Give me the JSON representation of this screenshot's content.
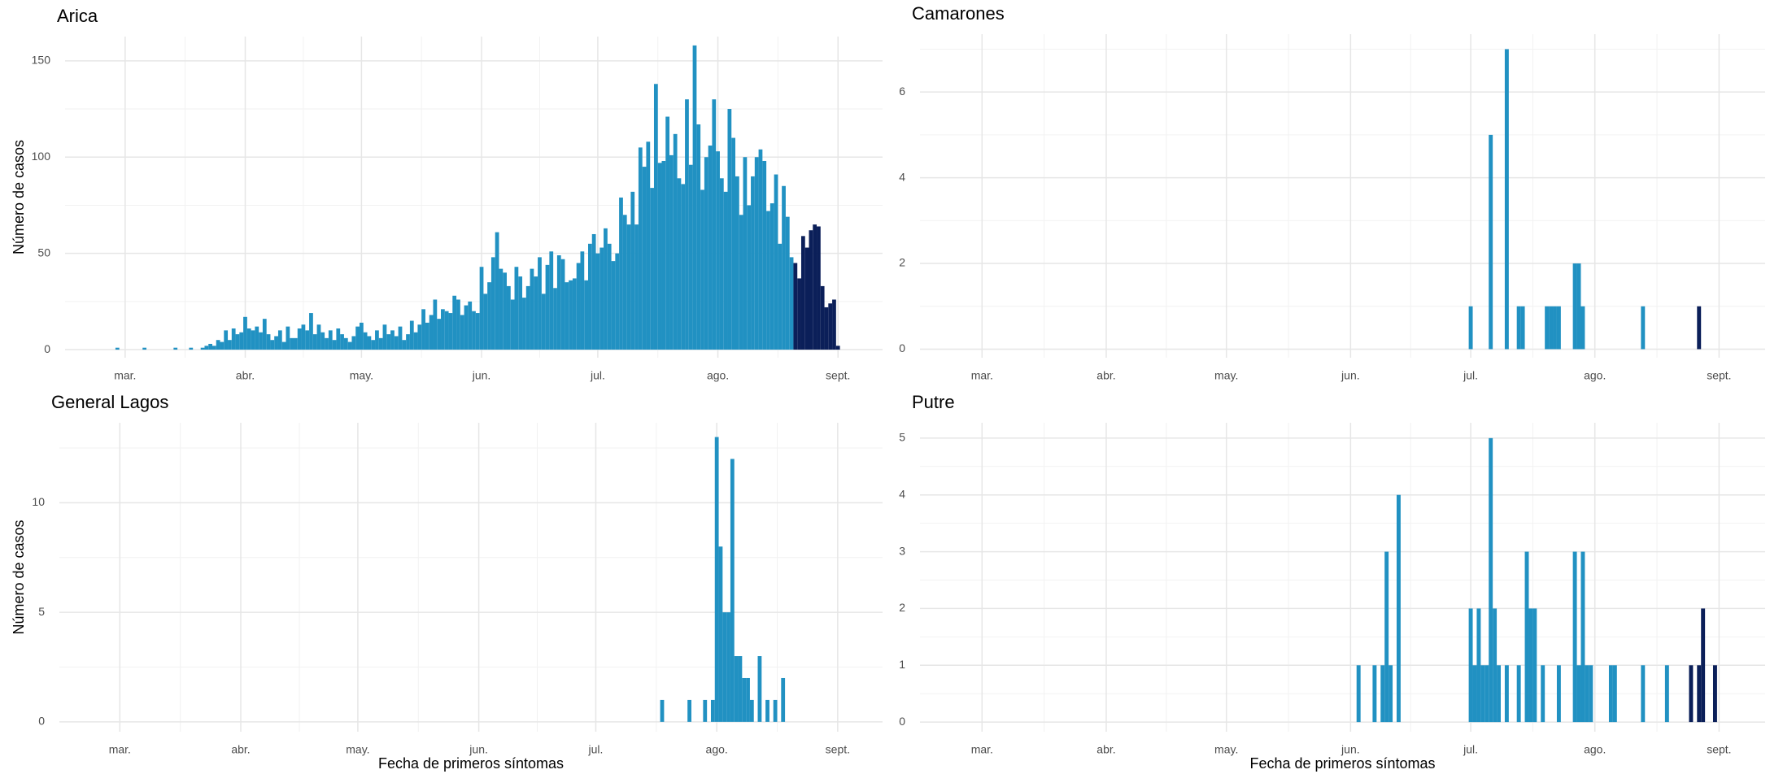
{
  "chart_data": [
    {
      "type": "bar",
      "title": "Arica",
      "ylabel": "Número de casos",
      "xlim": [
        -15.5,
        195.5
      ],
      "ylim": [
        -4.2,
        162.6
      ],
      "xticks": [
        {
          "value": 0,
          "label": "mar."
        },
        {
          "value": 31,
          "label": "abr."
        },
        {
          "value": 61,
          "label": "may."
        },
        {
          "value": 92,
          "label": "jun."
        },
        {
          "value": 122,
          "label": "jul."
        },
        {
          "value": 153,
          "label": "ago."
        },
        {
          "value": 184,
          "label": "sept."
        }
      ],
      "yticks": [
        0,
        50,
        100,
        150
      ],
      "grid": true,
      "series": [
        {
          "color": "#2191c2",
          "x": [
            -2,
            5,
            13,
            17,
            20,
            21,
            22,
            23,
            24,
            25,
            26,
            27,
            28,
            29,
            30,
            31,
            32,
            33,
            34,
            35,
            36,
            37,
            38,
            39,
            40,
            41,
            42,
            43,
            44,
            45,
            46,
            47,
            48,
            49,
            50,
            51,
            52,
            53,
            54,
            55,
            56,
            57,
            58,
            59,
            60,
            61,
            62,
            63,
            64,
            65,
            66,
            67,
            68,
            69,
            70,
            71,
            72,
            73,
            74,
            75,
            76,
            77,
            78,
            79,
            80,
            81,
            82,
            83,
            84,
            85,
            86,
            87,
            88,
            89,
            90,
            91,
            92,
            93,
            94,
            95,
            96,
            97,
            98,
            99,
            100,
            101,
            102,
            103,
            104,
            105,
            106,
            107,
            108,
            109,
            110,
            111,
            112,
            113,
            114,
            115,
            116,
            117,
            118,
            119,
            120,
            121,
            122,
            123,
            124,
            125,
            126,
            127,
            128,
            129,
            130,
            131,
            132,
            133,
            134,
            135,
            136,
            137,
            138,
            139,
            140,
            141,
            142,
            143,
            144,
            145,
            146,
            147,
            148,
            149,
            150,
            151,
            152,
            153,
            154,
            155,
            156,
            157,
            158,
            159,
            160,
            161,
            162,
            163,
            164,
            165,
            166,
            167,
            168,
            169,
            170,
            171,
            172
          ],
          "values": [
            1,
            1,
            1,
            1,
            1,
            2,
            3,
            2,
            5,
            4,
            10,
            5,
            11,
            8,
            9,
            17,
            11,
            10,
            12,
            9,
            16,
            8,
            5,
            7,
            10,
            4,
            12,
            6,
            6,
            11,
            13,
            10,
            19,
            8,
            13,
            9,
            6,
            10,
            5,
            11,
            8,
            6,
            4,
            7,
            12,
            14,
            9,
            7,
            5,
            10,
            6,
            13,
            8,
            10,
            7,
            12,
            5,
            8,
            15,
            9,
            13,
            21,
            14,
            18,
            26,
            16,
            21,
            20,
            19,
            28,
            26,
            18,
            23,
            25,
            20,
            19,
            43,
            29,
            35,
            48,
            61,
            42,
            40,
            33,
            26,
            43,
            38,
            27,
            33,
            42,
            38,
            48,
            29,
            44,
            51,
            32,
            49,
            47,
            35,
            36,
            37,
            45,
            51,
            36,
            55,
            60,
            50,
            53,
            63,
            55,
            46,
            50,
            79,
            70,
            65,
            82,
            65,
            105,
            95,
            108,
            84,
            138,
            97,
            98,
            121,
            101,
            112,
            89,
            86,
            130,
            96,
            158,
            117,
            83,
            100,
            106,
            130,
            103,
            89,
            82,
            125,
            110,
            90,
            70,
            100,
            75,
            90,
            100,
            104,
            98,
            72,
            76,
            91,
            55,
            85,
            69,
            48
          ]
        },
        {
          "color": "#0b1f59",
          "x": [
            173,
            174,
            175,
            176,
            177,
            178,
            179,
            180,
            181,
            182,
            183,
            184
          ],
          "values": [
            45,
            37,
            59,
            53,
            62,
            65,
            64,
            33,
            22,
            24,
            26,
            2
          ]
        }
      ]
    },
    {
      "type": "bar",
      "title": "Camarones",
      "xlim": [
        -15.5,
        195.5
      ],
      "ylim": [
        -0.2,
        7.35
      ],
      "xticks": [
        {
          "value": 0,
          "label": "mar."
        },
        {
          "value": 31,
          "label": "abr."
        },
        {
          "value": 61,
          "label": "may."
        },
        {
          "value": 92,
          "label": "jun."
        },
        {
          "value": 122,
          "label": "jul."
        },
        {
          "value": 153,
          "label": "ago."
        },
        {
          "value": 184,
          "label": "sept."
        }
      ],
      "yticks": [
        0,
        2,
        4,
        6
      ],
      "grid": true,
      "series": [
        {
          "color": "#2191c2",
          "x": [
            122,
            127,
            131,
            134,
            135,
            141,
            142,
            143,
            144,
            148,
            149,
            150,
            165
          ],
          "values": [
            1,
            5,
            7,
            1,
            1,
            1,
            1,
            1,
            1,
            2,
            2,
            1,
            1
          ]
        },
        {
          "color": "#0b1f59",
          "x": [
            179
          ],
          "values": [
            1
          ]
        }
      ]
    },
    {
      "type": "bar",
      "title": "General Lagos",
      "ylabel": "Número de casos",
      "xlabel": "Fecha de primeros síntomas",
      "xlim": [
        -15.5,
        195.5
      ],
      "ylim": [
        -0.45,
        13.65
      ],
      "xticks": [
        {
          "value": 0,
          "label": "mar."
        },
        {
          "value": 31,
          "label": "abr."
        },
        {
          "value": 61,
          "label": "may."
        },
        {
          "value": 92,
          "label": "jun."
        },
        {
          "value": 122,
          "label": "jul."
        },
        {
          "value": 153,
          "label": "ago."
        },
        {
          "value": 184,
          "label": "sept."
        }
      ],
      "yticks": [
        0,
        5,
        10
      ],
      "grid": true,
      "series": [
        {
          "color": "#2191c2",
          "x": [
            139,
            146,
            150,
            152,
            153,
            154,
            155,
            156,
            157,
            158,
            159,
            160,
            161,
            162,
            164,
            166,
            168,
            170
          ],
          "values": [
            1,
            1,
            1,
            1,
            13,
            8,
            5,
            5,
            12,
            3,
            3,
            2,
            2,
            1,
            3,
            1,
            1,
            2
          ]
        }
      ]
    },
    {
      "type": "bar",
      "title": "Putre",
      "xlabel": "Fecha de primeros síntomas",
      "xlim": [
        -15.5,
        195.5
      ],
      "ylim": [
        -0.17,
        5.27
      ],
      "xticks": [
        {
          "value": 0,
          "label": "mar."
        },
        {
          "value": 31,
          "label": "abr."
        },
        {
          "value": 61,
          "label": "may."
        },
        {
          "value": 92,
          "label": "jun."
        },
        {
          "value": 122,
          "label": "jul."
        },
        {
          "value": 153,
          "label": "ago."
        },
        {
          "value": 184,
          "label": "sept."
        }
      ],
      "yticks": [
        0,
        1,
        2,
        3,
        4,
        5
      ],
      "grid": true,
      "series": [
        {
          "color": "#2191c2",
          "x": [
            94,
            98,
            100,
            101,
            102,
            104,
            122,
            123,
            124,
            125,
            126,
            127,
            128,
            129,
            131,
            134,
            136,
            137,
            138,
            140,
            144,
            148,
            149,
            150,
            151,
            152,
            157,
            158,
            165,
            171
          ],
          "values": [
            1,
            1,
            1,
            3,
            1,
            4,
            2,
            1,
            2,
            1,
            1,
            5,
            2,
            1,
            1,
            1,
            3,
            2,
            2,
            1,
            1,
            3,
            1,
            3,
            1,
            1,
            1,
            1,
            1,
            1
          ]
        },
        {
          "color": "#0b1f59",
          "x": [
            177,
            179,
            180,
            183
          ],
          "values": [
            1,
            1,
            2,
            1
          ]
        }
      ]
    }
  ]
}
